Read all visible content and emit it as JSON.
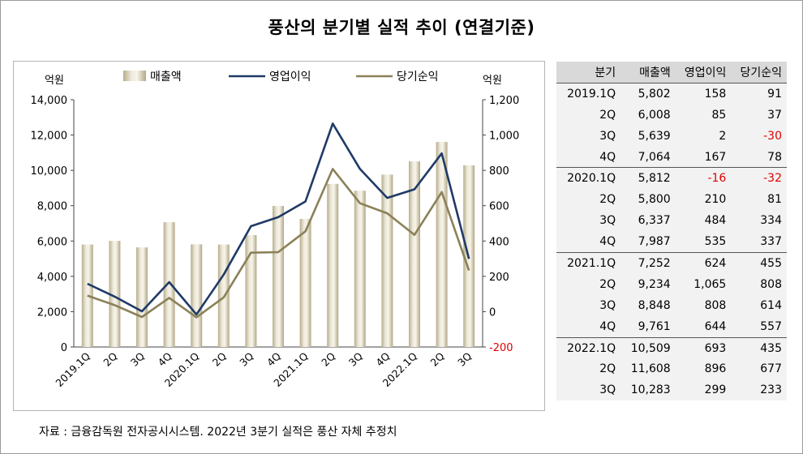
{
  "title": "풍산의 분기별 실적 추이 (연결기준)",
  "source": "자료 : 금융감독원 전자공시시스템. 2022년 3분기 실적은 풍산 자체 추정치",
  "colors": {
    "bar": "#d4ceb8",
    "operating": "#1f3a66",
    "net": "#8b8158",
    "negative": "#e00000"
  },
  "chart_data": {
    "type": "bar+line",
    "title": "풍산의 분기별 실적 추이 (연결기준)",
    "left_axis_label": "억원",
    "right_axis_label": "억원",
    "left_ylim": [
      0,
      14000
    ],
    "left_ticks": [
      "0",
      "2,000",
      "4,000",
      "6,000",
      "8,000",
      "10,000",
      "12,000",
      "14,000"
    ],
    "right_ylim": [
      -200,
      1200
    ],
    "right_ticks": [
      "-200",
      "0",
      "200",
      "400",
      "600",
      "800",
      "1,000",
      "1,200"
    ],
    "legend": [
      "매출액",
      "영업이익",
      "당기순익"
    ],
    "categories": [
      "2019.1Q",
      "2Q",
      "3Q",
      "4Q",
      "2020.1Q",
      "2Q",
      "3Q",
      "4Q",
      "2021.1Q",
      "2Q",
      "3Q",
      "4Q",
      "2022.1Q",
      "2Q",
      "3Q"
    ],
    "series": [
      {
        "name": "매출액",
        "axis": "left",
        "kind": "bar",
        "values": [
          5802,
          6008,
          5639,
          7064,
          5812,
          5800,
          6337,
          7987,
          7252,
          9234,
          8848,
          9761,
          10509,
          11608,
          10283
        ]
      },
      {
        "name": "영업이익",
        "axis": "right",
        "kind": "line",
        "values": [
          158,
          85,
          2,
          167,
          -16,
          210,
          484,
          535,
          624,
          1065,
          808,
          644,
          693,
          896,
          299
        ]
      },
      {
        "name": "당기순익",
        "axis": "right",
        "kind": "line",
        "values": [
          91,
          37,
          -30,
          78,
          -32,
          81,
          334,
          337,
          455,
          808,
          614,
          557,
          435,
          677,
          233
        ]
      }
    ]
  },
  "table": {
    "headers": [
      "분기",
      "매출액",
      "영업이익",
      "당기순익"
    ],
    "rows": [
      [
        "2019.1Q",
        "5,802",
        "158",
        "91"
      ],
      [
        "2Q",
        "6,008",
        "85",
        "37"
      ],
      [
        "3Q",
        "5,639",
        "2",
        "-30"
      ],
      [
        "4Q",
        "7,064",
        "167",
        "78"
      ],
      [
        "2020.1Q",
        "5,812",
        "-16",
        "-32"
      ],
      [
        "2Q",
        "5,800",
        "210",
        "81"
      ],
      [
        "3Q",
        "6,337",
        "484",
        "334"
      ],
      [
        "4Q",
        "7,987",
        "535",
        "337"
      ],
      [
        "2021.1Q",
        "7,252",
        "624",
        "455"
      ],
      [
        "2Q",
        "9,234",
        "1,065",
        "808"
      ],
      [
        "3Q",
        "8,848",
        "808",
        "614"
      ],
      [
        "4Q",
        "9,761",
        "644",
        "557"
      ],
      [
        "2022.1Q",
        "10,509",
        "693",
        "435"
      ],
      [
        "2Q",
        "11,608",
        "896",
        "677"
      ],
      [
        "3Q",
        "10,283",
        "299",
        "233"
      ]
    ]
  }
}
